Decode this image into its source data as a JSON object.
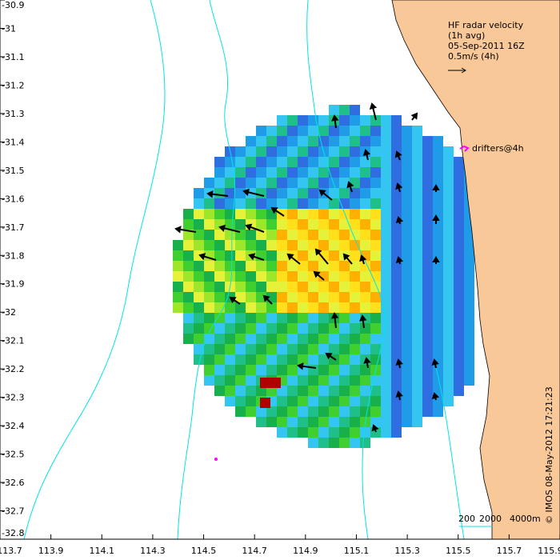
{
  "chart_data": {
    "type": "heatmap",
    "title_lines": [
      "HF radar velocity",
      "(1h avg)",
      "05-Sep-2011 16Z",
      "0.5m/s (4h)"
    ],
    "drifters_label": "drifters@4h",
    "contour_scale_labels": [
      "200",
      "2000",
      "4000m"
    ],
    "credit": "© IMOS 08-May-2012 17:21:23",
    "x_ticks": [
      "113.7",
      "113.9",
      "114.1",
      "114.3",
      "114.5",
      "114.7",
      "114.9",
      "115.1",
      "115.3",
      "115.5",
      "115.7",
      "115.9"
    ],
    "y_ticks": [
      "-30.9",
      "-31",
      "-31.1",
      "-31.2",
      "-31.3",
      "-31.4",
      "-31.5",
      "-31.6",
      "-31.7",
      "-31.8",
      "-31.9",
      "-32",
      "-32.1",
      "-32.2",
      "-32.3",
      "-32.4",
      "-32.5",
      "-32.6",
      "-32.7",
      "-32.8"
    ],
    "xlim": [
      113.7,
      115.9
    ],
    "ylim": [
      -32.8,
      -30.9
    ],
    "colors": {
      "land": "#f9c898",
      "contour": "#00e5e5",
      "drifter": "#ff00ff",
      "arrow": "#000000"
    }
  }
}
